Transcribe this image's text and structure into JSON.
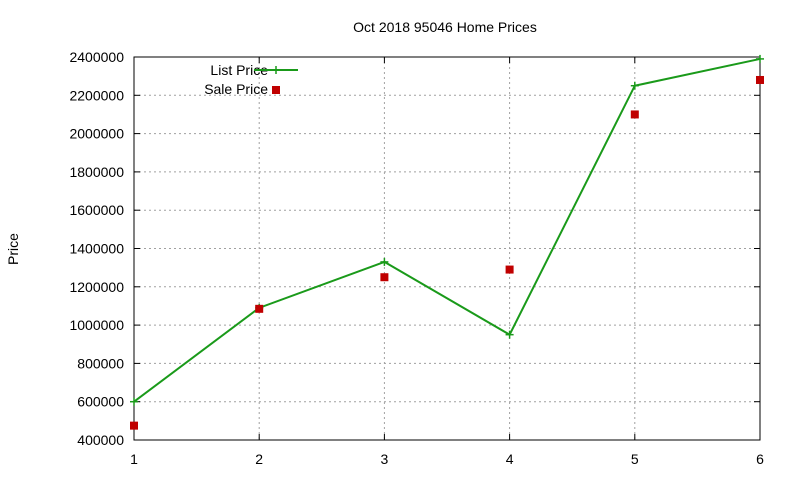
{
  "chart_data": {
    "type": "line",
    "title": "Oct 2018 95046 Home Prices",
    "xlabel": "",
    "ylabel": "Price",
    "x": [
      1,
      2,
      3,
      4,
      5,
      6
    ],
    "xlim": [
      1,
      6
    ],
    "ylim": [
      400000,
      2400000
    ],
    "x_ticks": [
      "1",
      "2",
      "3",
      "4",
      "5",
      "6"
    ],
    "y_ticks": [
      "400000",
      "600000",
      "800000",
      "1000000",
      "1200000",
      "1400000",
      "1600000",
      "1800000",
      "2000000",
      "2200000",
      "2400000"
    ],
    "grid": true,
    "legend_position": "top-left",
    "series": [
      {
        "name": "List Price",
        "style": "line-with-plus-markers",
        "color": "#1a9a1a",
        "values": [
          600000,
          1090000,
          1330000,
          950000,
          2250000,
          2390000
        ]
      },
      {
        "name": "Sale Price",
        "style": "square-markers",
        "color": "#c00000",
        "values": [
          475000,
          1085000,
          1250000,
          1290000,
          2100000,
          2280000
        ]
      }
    ]
  }
}
